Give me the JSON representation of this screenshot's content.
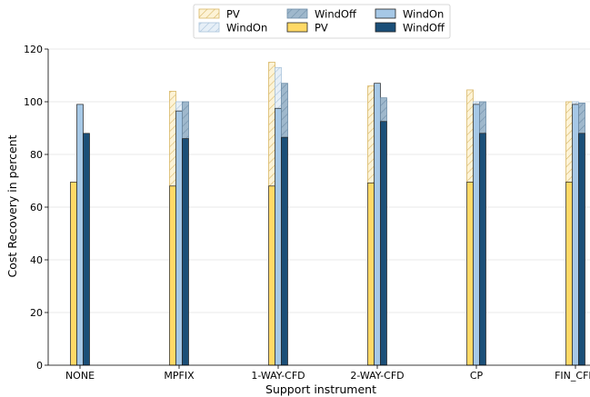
{
  "chart_data": {
    "type": "bar",
    "xlabel": "Support instrument",
    "ylabel": "Cost Recovery in percent",
    "ylim": [
      0,
      120
    ],
    "yticks": [
      0,
      20,
      40,
      60,
      80,
      100,
      120
    ],
    "grid": "horizontal",
    "legend_placement": "top-center",
    "categories": [
      "NONE",
      "MPFIX",
      "1-WAY-CFD",
      "2-WAY-CFD",
      "CP",
      "FIN_CFD"
    ],
    "legend": [
      {
        "label": "PV",
        "key": "PV",
        "style": "hatched"
      },
      {
        "label": "WindOn",
        "key": "WindOn",
        "style": "hatched"
      },
      {
        "label": "WindOff",
        "key": "WindOff",
        "style": "hatched"
      },
      {
        "label": "PV",
        "key": "PV",
        "style": "solid"
      },
      {
        "label": "WindOn",
        "key": "WindOn",
        "style": "solid"
      },
      {
        "label": "WindOff",
        "key": "WindOff",
        "style": "solid"
      }
    ],
    "series": [
      {
        "key": "PV",
        "base": [
          69.5,
          68,
          68,
          69.2,
          69.5,
          69.5
        ],
        "total": [
          69.5,
          104,
          115,
          106,
          104.5,
          100
        ]
      },
      {
        "key": "WindOn",
        "base": [
          99,
          96.5,
          97.5,
          107,
          99,
          99
        ],
        "total": [
          99,
          100,
          113,
          107,
          100,
          100
        ]
      },
      {
        "key": "WindOff",
        "base": [
          88,
          86,
          86.5,
          92.5,
          88,
          88
        ],
        "total": [
          88,
          100,
          107,
          101.5,
          100,
          99.5
        ]
      }
    ],
    "colors": {
      "PV": {
        "solid": "#ffd966",
        "hatch": "#f5dd9a",
        "hatch_line": "#d9b868"
      },
      "WindOn": {
        "solid": "#a6c8e6",
        "hatch": "#dde9f4",
        "hatch_line": "#a9c3db"
      },
      "WindOff": {
        "solid": "#1b4f78",
        "hatch": "#95b2c9",
        "hatch_line": "#6f8ea8"
      }
    }
  }
}
